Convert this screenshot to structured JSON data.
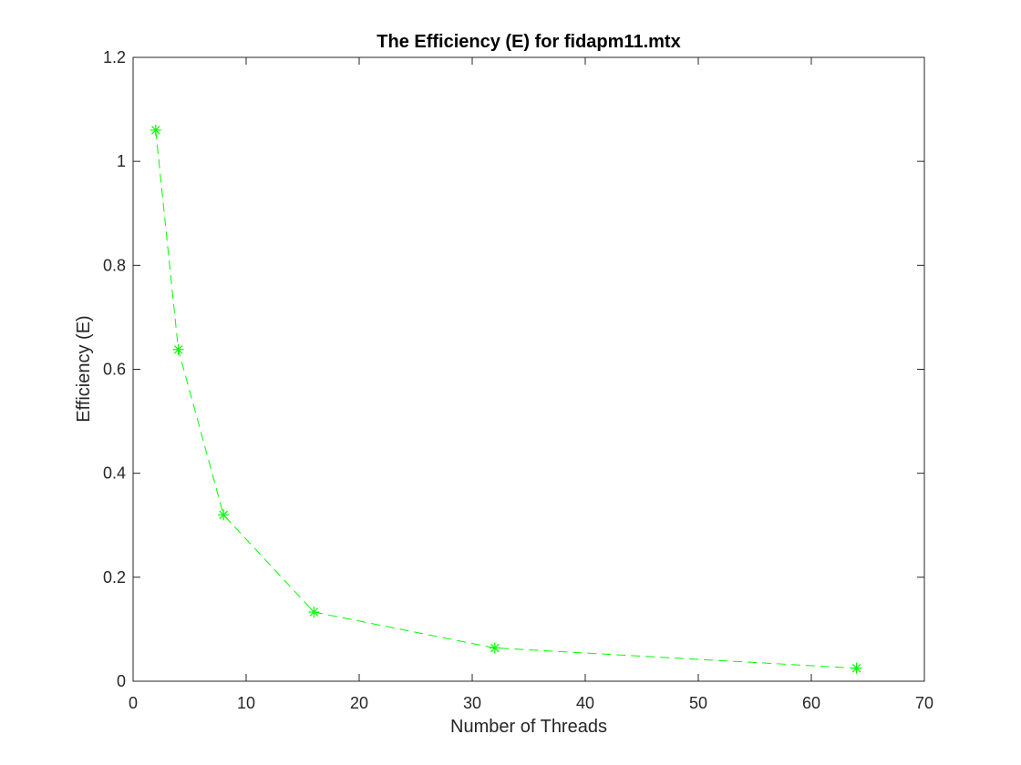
{
  "chart_data": {
    "type": "line",
    "title": "The Efficiency (E) for fidapm11.mtx",
    "xlabel": "Number of Threads",
    "ylabel": "Efficiency (E)",
    "xlim": [
      0,
      70
    ],
    "ylim": [
      0,
      1.2
    ],
    "x_ticks": [
      "0",
      "10",
      "20",
      "30",
      "40",
      "50",
      "60",
      "70"
    ],
    "y_ticks": [
      "0",
      "0.2",
      "0.4",
      "0.6",
      "0.8",
      "1",
      "1.2"
    ],
    "grid": false,
    "legend": "none",
    "series": [
      {
        "color": "#00ff00",
        "line_style": "dashed",
        "marker": "asterisk",
        "x": [
          2,
          4,
          8,
          16,
          32,
          64
        ],
        "y": [
          1.06,
          0.638,
          0.32,
          0.133,
          0.064,
          0.025
        ]
      }
    ]
  }
}
